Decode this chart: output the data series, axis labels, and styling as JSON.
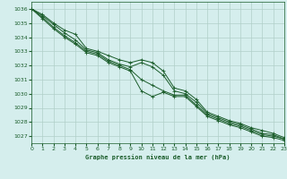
{
  "title": "Graphe pression niveau de la mer (hPa)",
  "bg_color": "#d5eeed",
  "grid_color": "#b0cfc8",
  "line_color": "#1a5c2a",
  "x_min": 0,
  "x_max": 23,
  "y_min": 1026.5,
  "y_max": 1036.5,
  "yticks": [
    1027,
    1028,
    1029,
    1030,
    1031,
    1032,
    1033,
    1034,
    1035,
    1036
  ],
  "xticks": [
    0,
    1,
    2,
    3,
    4,
    5,
    6,
    7,
    8,
    9,
    10,
    11,
    12,
    13,
    14,
    15,
    16,
    17,
    18,
    19,
    20,
    21,
    22,
    23
  ],
  "series": [
    [
      1036.0,
      1035.6,
      1035.0,
      1034.5,
      1034.2,
      1033.2,
      1033.0,
      1032.7,
      1032.4,
      1032.2,
      1032.4,
      1032.2,
      1031.6,
      1030.4,
      1030.2,
      1029.6,
      1028.7,
      1028.4,
      1028.1,
      1027.9,
      1027.6,
      1027.4,
      1027.2,
      1026.9
    ],
    [
      1036.0,
      1035.5,
      1034.9,
      1034.3,
      1033.8,
      1033.1,
      1032.9,
      1032.4,
      1032.1,
      1031.9,
      1032.2,
      1031.9,
      1031.3,
      1030.2,
      1030.0,
      1029.4,
      1028.6,
      1028.3,
      1028.0,
      1027.8,
      1027.5,
      1027.2,
      1027.1,
      1026.8
    ],
    [
      1036.0,
      1035.4,
      1034.7,
      1034.1,
      1033.6,
      1033.0,
      1032.8,
      1032.3,
      1032.0,
      1031.7,
      1031.0,
      1030.6,
      1030.2,
      1029.9,
      1029.9,
      1029.2,
      1028.5,
      1028.2,
      1027.9,
      1027.7,
      1027.4,
      1027.1,
      1027.0,
      1026.8
    ],
    [
      1036.0,
      1035.3,
      1034.6,
      1034.0,
      1033.5,
      1032.9,
      1032.7,
      1032.2,
      1031.9,
      1031.6,
      1030.2,
      1029.8,
      1030.1,
      1029.8,
      1029.8,
      1029.1,
      1028.4,
      1028.1,
      1027.8,
      1027.6,
      1027.3,
      1027.0,
      1026.9,
      1026.7
    ]
  ]
}
